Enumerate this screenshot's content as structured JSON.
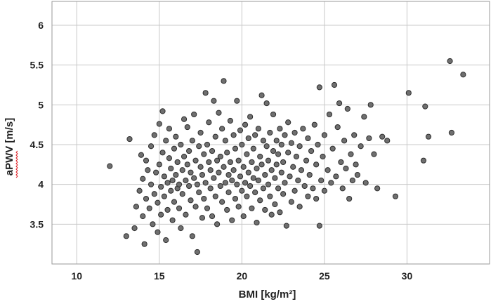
{
  "chart_data": {
    "type": "scatter",
    "title": "",
    "xlabel": "BMI [kg/m²]",
    "ylabel": "aPWV [m/s]",
    "xlim": [
      8.5,
      35
    ],
    "ylim": [
      3.0,
      6.3
    ],
    "xticks": [
      10,
      15,
      20,
      25,
      30
    ],
    "xtick_labels": [
      "10",
      "15",
      "20",
      "25",
      "30"
    ],
    "yticks": [
      3.5,
      4,
      4.5,
      5,
      5.5,
      6
    ],
    "ytick_labels": [
      "3.5",
      "4",
      "4.5",
      "5",
      "5.5",
      "6"
    ],
    "grid": true,
    "marker_color": "#6f6f6f",
    "marker_edge_color": "#2e2e2e",
    "series": [
      {
        "points": [
          [
            12.0,
            4.23
          ],
          [
            13.0,
            3.35
          ],
          [
            13.2,
            4.57
          ],
          [
            13.5,
            3.45
          ],
          [
            13.6,
            3.72
          ],
          [
            13.8,
            3.92
          ],
          [
            13.9,
            4.37
          ],
          [
            14.0,
            3.6
          ],
          [
            14.0,
            4.07
          ],
          [
            14.1,
            3.25
          ],
          [
            14.2,
            3.82
          ],
          [
            14.2,
            4.3
          ],
          [
            14.3,
            4.18
          ],
          [
            14.4,
            3.7
          ],
          [
            14.5,
            4.0
          ],
          [
            14.5,
            4.48
          ],
          [
            14.6,
            3.5
          ],
          [
            14.7,
            3.88
          ],
          [
            14.7,
            4.62
          ],
          [
            14.8,
            4.15
          ],
          [
            14.9,
            3.4
          ],
          [
            14.9,
            3.77
          ],
          [
            15.0,
            4.25
          ],
          [
            15.0,
            4.76
          ],
          [
            15.1,
            3.97
          ],
          [
            15.1,
            3.62
          ],
          [
            15.2,
            4.4
          ],
          [
            15.2,
            4.92
          ],
          [
            15.3,
            3.85
          ],
          [
            15.3,
            4.1
          ],
          [
            15.4,
            3.3
          ],
          [
            15.4,
            4.55
          ],
          [
            15.5,
            4.02
          ],
          [
            15.5,
            3.68
          ],
          [
            15.6,
            4.33
          ],
          [
            15.6,
            4.7
          ],
          [
            15.7,
            3.92
          ],
          [
            15.7,
            4.2
          ],
          [
            15.8,
            3.55
          ],
          [
            15.8,
            4.05
          ],
          [
            15.9,
            4.45
          ],
          [
            15.9,
            3.78
          ],
          [
            16.0,
            4.12
          ],
          [
            16.0,
            4.6
          ],
          [
            16.1,
            3.95
          ],
          [
            16.1,
            4.28
          ],
          [
            16.2,
            3.7
          ],
          [
            16.2,
            4.0
          ],
          [
            16.3,
            4.5
          ],
          [
            16.3,
            3.45
          ],
          [
            16.4,
            4.18
          ],
          [
            16.4,
            3.88
          ],
          [
            16.5,
            4.35
          ],
          [
            16.5,
            4.82
          ],
          [
            16.6,
            4.05
          ],
          [
            16.6,
            3.62
          ],
          [
            16.7,
            4.25
          ],
          [
            16.7,
            4.72
          ],
          [
            16.8,
            3.98
          ],
          [
            16.8,
            4.42
          ],
          [
            16.9,
            3.8
          ],
          [
            16.9,
            4.15
          ],
          [
            17.0,
            4.55
          ],
          [
            17.0,
            3.35
          ],
          [
            17.1,
            4.08
          ],
          [
            17.1,
            4.88
          ],
          [
            17.2,
            3.72
          ],
          [
            17.2,
            4.3
          ],
          [
            17.3,
            4.0
          ],
          [
            17.3,
            3.15
          ],
          [
            17.4,
            4.48
          ],
          [
            17.4,
            3.9
          ],
          [
            17.5,
            4.22
          ],
          [
            17.5,
            4.65
          ],
          [
            17.6,
            3.58
          ],
          [
            17.6,
            4.12
          ],
          [
            17.7,
            4.38
          ],
          [
            17.7,
            3.82
          ],
          [
            17.8,
            5.15
          ],
          [
            17.8,
            4.02
          ],
          [
            17.9,
            4.5
          ],
          [
            17.9,
            3.7
          ],
          [
            18.0,
            4.28
          ],
          [
            18.0,
            4.78
          ],
          [
            18.1,
            3.95
          ],
          [
            18.1,
            4.18
          ],
          [
            18.2,
            3.6
          ],
          [
            18.2,
            4.42
          ],
          [
            18.3,
            5.05
          ],
          [
            18.3,
            4.08
          ],
          [
            18.4,
            3.85
          ],
          [
            18.4,
            4.6
          ],
          [
            18.5,
            4.3
          ],
          [
            18.5,
            3.5
          ],
          [
            18.6,
            4.15
          ],
          [
            18.6,
            4.9
          ],
          [
            18.7,
            3.98
          ],
          [
            18.7,
            4.35
          ],
          [
            18.8,
            4.7
          ],
          [
            18.8,
            3.78
          ],
          [
            18.9,
            5.3
          ],
          [
            18.9,
            4.22
          ],
          [
            19.0,
            4.02
          ],
          [
            19.0,
            4.55
          ],
          [
            19.1,
            3.68
          ],
          [
            19.1,
            4.4
          ],
          [
            19.2,
            4.12
          ],
          [
            19.2,
            3.9
          ],
          [
            19.3,
            4.8
          ],
          [
            19.3,
            4.28
          ],
          [
            19.4,
            3.55
          ],
          [
            19.4,
            4.05
          ],
          [
            19.5,
            4.62
          ],
          [
            19.5,
            4.18
          ],
          [
            19.6,
            3.82
          ],
          [
            19.6,
            4.45
          ],
          [
            19.7,
            4.0
          ],
          [
            19.7,
            5.05
          ],
          [
            19.8,
            4.3
          ],
          [
            19.8,
            3.72
          ],
          [
            19.9,
            4.68
          ],
          [
            19.9,
            4.1
          ],
          [
            20.0,
            3.92
          ],
          [
            20.0,
            4.5
          ],
          [
            20.1,
            4.22
          ],
          [
            20.1,
            3.6
          ],
          [
            20.2,
            4.75
          ],
          [
            20.2,
            4.02
          ],
          [
            20.3,
            4.38
          ],
          [
            20.3,
            3.85
          ],
          [
            20.4,
            4.58
          ],
          [
            20.4,
            4.15
          ],
          [
            20.5,
            3.98
          ],
          [
            20.5,
            4.85
          ],
          [
            20.6,
            4.28
          ],
          [
            20.6,
            3.7
          ],
          [
            20.7,
            4.45
          ],
          [
            20.7,
            4.08
          ],
          [
            20.8,
            3.9
          ],
          [
            20.8,
            4.62
          ],
          [
            20.9,
            4.2
          ],
          [
            20.9,
            3.52
          ],
          [
            21.0,
            4.7
          ],
          [
            21.0,
            4.05
          ],
          [
            21.1,
            4.35
          ],
          [
            21.1,
            3.8
          ],
          [
            21.2,
            5.12
          ],
          [
            21.2,
            4.25
          ],
          [
            21.3,
            3.95
          ],
          [
            21.3,
            4.55
          ],
          [
            21.4,
            4.12
          ],
          [
            21.4,
            3.68
          ],
          [
            21.5,
            4.48
          ],
          [
            21.5,
            5.02
          ],
          [
            21.6,
            4.0
          ],
          [
            21.6,
            4.3
          ],
          [
            21.7,
            3.85
          ],
          [
            21.7,
            4.65
          ],
          [
            21.8,
            4.18
          ],
          [
            21.8,
            3.62
          ],
          [
            21.9,
            4.42
          ],
          [
            21.9,
            4.88
          ],
          [
            22.0,
            4.08
          ],
          [
            22.0,
            3.75
          ],
          [
            22.1,
            4.55
          ],
          [
            22.1,
            4.25
          ],
          [
            22.2,
            3.95
          ],
          [
            22.2,
            4.38
          ],
          [
            22.3,
            4.7
          ],
          [
            22.3,
            3.65
          ],
          [
            22.4,
            4.15
          ],
          [
            22.4,
            4.5
          ],
          [
            22.5,
            3.88
          ],
          [
            22.5,
            4.28
          ],
          [
            22.6,
            4.62
          ],
          [
            22.6,
            4.02
          ],
          [
            22.7,
            3.48
          ],
          [
            22.8,
            4.4
          ],
          [
            22.8,
            4.78
          ],
          [
            22.9,
            4.1
          ],
          [
            23.0,
            3.78
          ],
          [
            23.0,
            4.52
          ],
          [
            23.1,
            4.22
          ],
          [
            23.2,
            3.92
          ],
          [
            23.2,
            4.65
          ],
          [
            23.3,
            4.35
          ],
          [
            23.4,
            4.05
          ],
          [
            23.5,
            3.72
          ],
          [
            23.5,
            4.48
          ],
          [
            23.6,
            4.18
          ],
          [
            23.7,
            4.7
          ],
          [
            23.8,
            3.98
          ],
          [
            23.9,
            4.3
          ],
          [
            24.0,
            3.85
          ],
          [
            24.0,
            4.58
          ],
          [
            24.1,
            4.12
          ],
          [
            24.2,
            4.42
          ],
          [
            24.3,
            3.95
          ],
          [
            24.4,
            4.75
          ],
          [
            24.5,
            4.25
          ],
          [
            24.5,
            3.82
          ],
          [
            24.6,
            4.5
          ],
          [
            24.7,
            3.48
          ],
          [
            24.7,
            5.22
          ],
          [
            24.8,
            4.05
          ],
          [
            24.9,
            4.35
          ],
          [
            25.0,
            3.92
          ],
          [
            25.0,
            4.62
          ],
          [
            25.2,
            4.18
          ],
          [
            25.3,
            4.88
          ],
          [
            25.4,
            4.02
          ],
          [
            25.5,
            4.45
          ],
          [
            25.6,
            5.25
          ],
          [
            25.7,
            4.1
          ],
          [
            25.8,
            4.72
          ],
          [
            25.9,
            5.02
          ],
          [
            26.0,
            4.28
          ],
          [
            26.1,
            3.95
          ],
          [
            26.2,
            4.55
          ],
          [
            26.3,
            4.2
          ],
          [
            26.4,
            4.95
          ],
          [
            26.5,
            3.82
          ],
          [
            26.6,
            4.38
          ],
          [
            26.7,
            4.05
          ],
          [
            26.8,
            4.62
          ],
          [
            26.9,
            4.25
          ],
          [
            27.0,
            4.12
          ],
          [
            27.2,
            4.48
          ],
          [
            27.4,
            4.85
          ],
          [
            27.5,
            4.02
          ],
          [
            27.7,
            4.58
          ],
          [
            27.8,
            5.0
          ],
          [
            28.0,
            4.38
          ],
          [
            28.2,
            3.95
          ],
          [
            28.5,
            4.6
          ],
          [
            28.8,
            4.55
          ],
          [
            29.3,
            3.85
          ],
          [
            30.1,
            5.15
          ],
          [
            31.0,
            4.3
          ],
          [
            31.1,
            4.98
          ],
          [
            31.3,
            4.6
          ],
          [
            32.6,
            5.55
          ],
          [
            32.7,
            4.65
          ],
          [
            33.4,
            5.38
          ]
        ]
      }
    ]
  }
}
